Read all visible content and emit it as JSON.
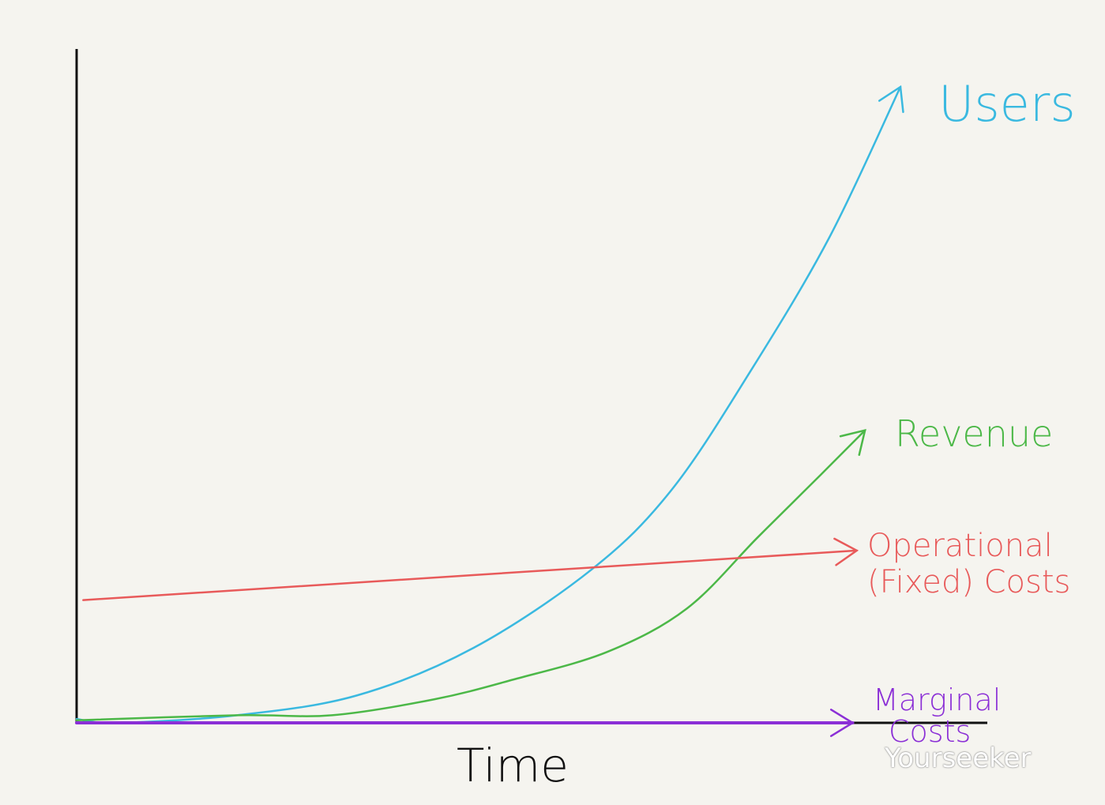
{
  "chart_data": {
    "type": "line",
    "title": "",
    "xlabel": "Time",
    "ylabel": "",
    "xlim": [
      0,
      10
    ],
    "ylim": [
      0,
      100
    ],
    "grid": false,
    "legend": "labels at line ends (right)",
    "series": [
      {
        "name": "Users",
        "color": "#3ab9e0",
        "x": [
          0,
          0.5,
          1.95,
          3.4,
          4.82,
          6.26,
          7.22,
          8.18,
          9.14,
          10
        ],
        "y": [
          0.6,
          0,
          1.2,
          4.3,
          11.8,
          24.2,
          36.6,
          55.3,
          76.4,
          100
        ]
      },
      {
        "name": "Revenue",
        "color": "#4cb848",
        "x": [
          0,
          1.95,
          3.1,
          4.34,
          5.3,
          6.45,
          7.41,
          8.27,
          9.04,
          9.57
        ],
        "y": [
          0.4,
          1.2,
          1.2,
          3.7,
          6.8,
          11.2,
          18,
          29.2,
          39.1,
          46
        ]
      },
      {
        "name": "Operational (Fixed) Costs",
        "label_lines": [
          "Operational",
          "(Fixed) Costs"
        ],
        "color": "#e85a5a",
        "x": [
          0.08,
          9.47
        ],
        "y": [
          19.3,
          27.1
        ]
      },
      {
        "name": "Marginal Costs",
        "label_lines": [
          "Marginal",
          "Costs"
        ],
        "color": "#8b2fd6",
        "x": [
          0,
          9.42
        ],
        "y": [
          0,
          0
        ]
      }
    ]
  },
  "watermark": "Yourseeker"
}
